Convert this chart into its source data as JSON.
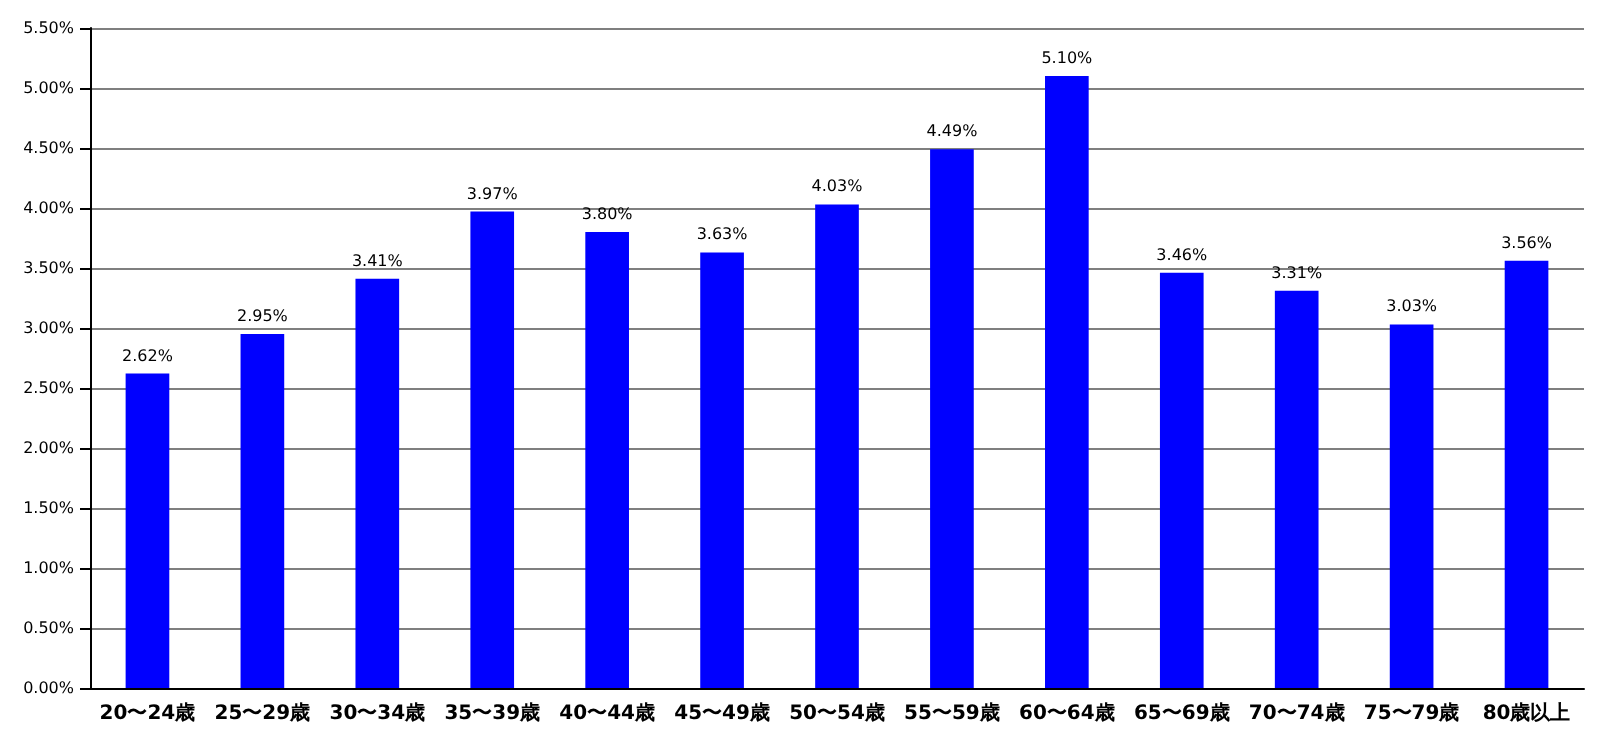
{
  "chart_data": {
    "type": "bar",
    "categories": [
      "20〜24歳",
      "25〜29歳",
      "30〜34歳",
      "35〜39歳",
      "40〜44歳",
      "45〜49歳",
      "50〜54歳",
      "55〜59歳",
      "60〜64歳",
      "65〜69歳",
      "70〜74歳",
      "75〜79歳",
      "80歳以上"
    ],
    "values": [
      2.62,
      2.95,
      3.41,
      3.97,
      3.8,
      3.63,
      4.03,
      4.49,
      5.1,
      3.46,
      3.31,
      3.03,
      3.56
    ],
    "value_labels": [
      "2.62%",
      "2.95%",
      "3.41%",
      "3.97%",
      "3.80%",
      "3.63%",
      "4.03%",
      "4.49%",
      "5.10%",
      "3.46%",
      "3.31%",
      "3.03%",
      "3.56%"
    ],
    "color": "#0000ff",
    "ylim": [
      0,
      5.5
    ],
    "yticks": [
      {
        "value": 0,
        "label": "0.00%"
      },
      {
        "value": 0.5,
        "label": "0.50%"
      },
      {
        "value": 1,
        "label": "1.00%"
      },
      {
        "value": 1.5,
        "label": "1.50%"
      },
      {
        "value": 2,
        "label": "2.00%"
      },
      {
        "value": 2.5,
        "label": "2.50%"
      },
      {
        "value": 3,
        "label": "3.00%"
      },
      {
        "value": 3.5,
        "label": "3.50%"
      },
      {
        "value": 4,
        "label": "4.00%"
      },
      {
        "value": 4.5,
        "label": "4.50%"
      },
      {
        "value": 5,
        "label": "5.00%"
      },
      {
        "value": 5.5,
        "label": "5.50%"
      }
    ],
    "grid": "y"
  }
}
